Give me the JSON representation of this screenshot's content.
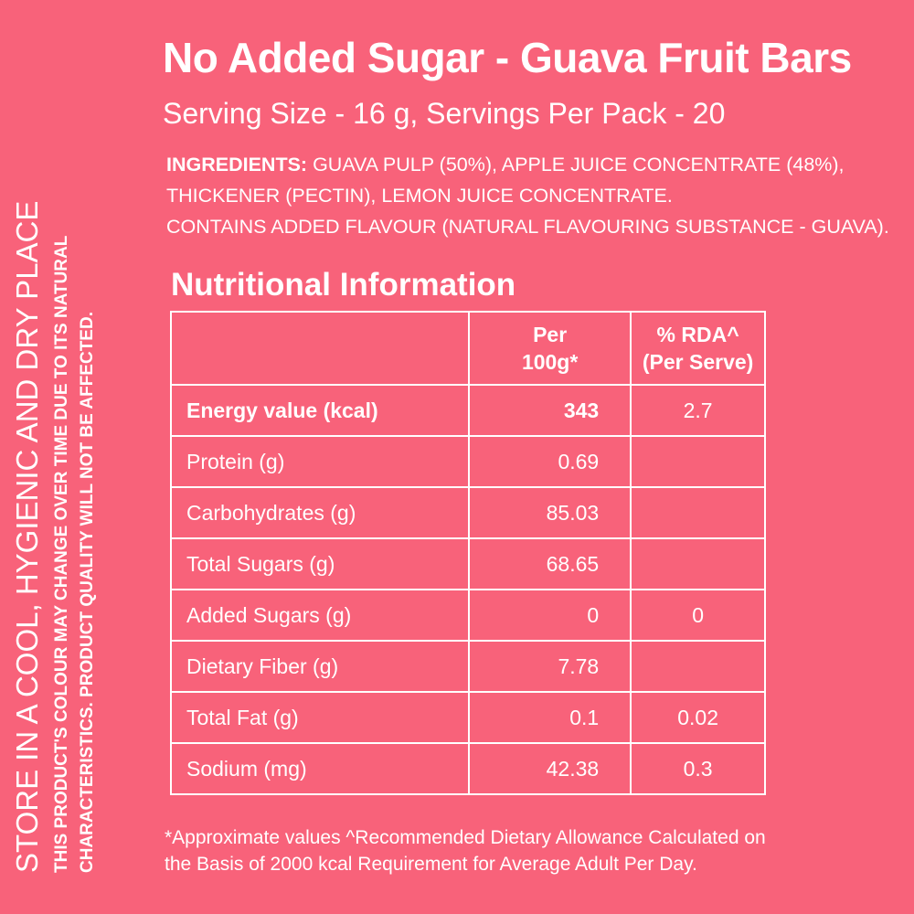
{
  "title": "No Added Sugar - Guava Fruit Bars",
  "subtitle": "Serving Size  - 16 g, Servings Per Pack - 20",
  "ingredients": {
    "label": "INGREDIENTS:",
    "line1": " GUAVA PULP (50%), APPLE JUICE CONCENTRATE (48%),",
    "line2": "THICKENER (PECTIN), LEMON JUICE CONCENTRATE.",
    "line3": "CONTAINS ADDED FLAVOUR (NATURAL FLAVOURING SUBSTANCE - GUAVA)."
  },
  "nutrition": {
    "heading": "Nutritional Information",
    "header": {
      "col1": "",
      "col2_line1": "Per",
      "col2_line2": "100g*",
      "col3_line1": "% RDA^",
      "col3_line2": "(Per Serve)"
    },
    "rows": [
      {
        "name": "Energy value (kcal)",
        "per100": "343",
        "rda": "2.7"
      },
      {
        "name": "Protein (g)",
        "per100": "0.69",
        "rda": ""
      },
      {
        "name": "Carbohydrates (g)",
        "per100": "85.03",
        "rda": ""
      },
      {
        "name": "Total Sugars (g)",
        "per100": "68.65",
        "rda": ""
      },
      {
        "name": "Added Sugars (g)",
        "per100": "0",
        "rda": "0"
      },
      {
        "name": "Dietary Fiber (g)",
        "per100": "7.78",
        "rda": ""
      },
      {
        "name": "Total Fat (g)",
        "per100": "0.1",
        "rda": "0.02"
      },
      {
        "name": "Sodium (mg)",
        "per100": "42.38",
        "rda": "0.3"
      }
    ]
  },
  "footnote": {
    "line1": "*Approximate values ^Recommended Dietary Allowance Calculated on",
    "line2": "the Basis of 2000 kcal Requirement for Average Adult Per Day."
  },
  "side": {
    "storage": "STORE IN A COOL, HYGIENIC AND DRY PLACE",
    "note_line1": "THIS PRODUCT'S COLOUR MAY CHANGE OVER TIME DUE TO ITS NATURAL",
    "note_line2": "CHARACTERISTICS. PRODUCT QUALITY WILL NOT BE AFFECTED."
  },
  "colors": {
    "background": "#f8627a",
    "text": "#ffffff"
  }
}
